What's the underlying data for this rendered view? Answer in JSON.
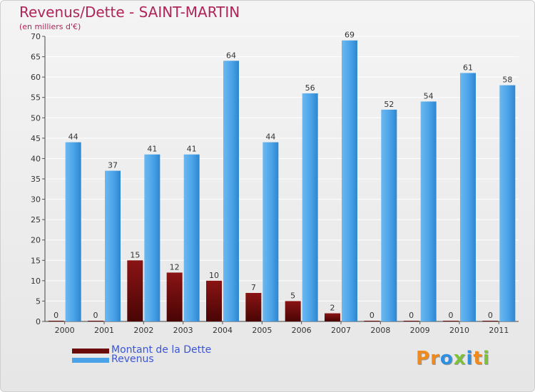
{
  "chart_data": {
    "type": "bar",
    "title": "Revenus/Dette - SAINT-MARTIN",
    "subtitle": "(en milliers d'€)",
    "categories": [
      "2000",
      "2001",
      "2002",
      "2003",
      "2004",
      "2005",
      "2006",
      "2007",
      "2008",
      "2009",
      "2010",
      "2011"
    ],
    "series": [
      {
        "name": "Montant de la Dette",
        "color": "#6b0a0a",
        "values": [
          0,
          0,
          15,
          12,
          10,
          7,
          5,
          2,
          0,
          0,
          0,
          0
        ]
      },
      {
        "name": "Revenus",
        "color": "#4aa3e8",
        "values": [
          44,
          37,
          41,
          41,
          64,
          44,
          56,
          69,
          52,
          54,
          61,
          58
        ]
      }
    ],
    "ylim": [
      0,
      70
    ],
    "yticks": [
      0,
      5,
      10,
      15,
      20,
      25,
      30,
      35,
      40,
      45,
      50,
      55,
      60,
      65,
      70
    ],
    "grid": true,
    "legend_position": "bottom-left"
  },
  "branding": {
    "logo_text": "Proxiti",
    "logo_letters": [
      "P",
      "r",
      "o",
      "x",
      "i",
      "t",
      "i"
    ],
    "logo_colors": [
      "#f08a1c",
      "#f08a1c",
      "#2f8fe0",
      "#7cc23a",
      "#2f8fe0",
      "#f08a1c",
      "#7cc23a"
    ]
  }
}
